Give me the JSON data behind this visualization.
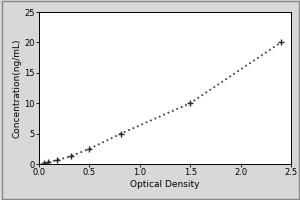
{
  "x_data": [
    0.047,
    0.094,
    0.175,
    0.313,
    0.5,
    0.813,
    1.5,
    2.4
  ],
  "y_data": [
    0.156,
    0.313,
    0.625,
    1.25,
    2.5,
    5.0,
    10.0,
    20.0
  ],
  "xlabel": "Optical Density",
  "ylabel": "Concentration(ng/mL)",
  "xlim": [
    0,
    2.5
  ],
  "ylim": [
    0,
    25
  ],
  "xticks": [
    0,
    0.5,
    1,
    1.5,
    2,
    2.5
  ],
  "yticks": [
    0,
    5,
    10,
    15,
    20,
    25
  ],
  "marker": "+",
  "marker_color": "#2a2a2a",
  "line_style": ":",
  "line_color": "#444444",
  "marker_size": 5,
  "line_width": 1.3,
  "font_size_label": 6.5,
  "font_size_tick": 6,
  "bg_color": "#d8d8d8",
  "plot_bg_color": "#ffffff",
  "border_color": "#000000"
}
